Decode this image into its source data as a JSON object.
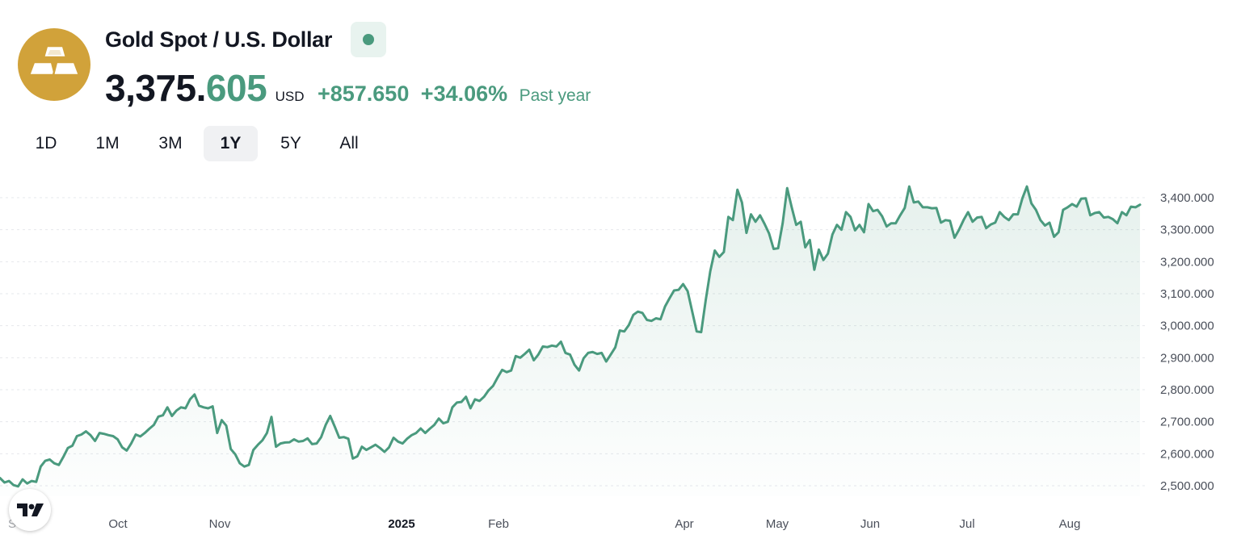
{
  "header": {
    "title": "Gold Spot / U.S. Dollar",
    "price_int": "3,375.",
    "price_dec": "605",
    "currency": "USD",
    "change": "+857.650",
    "change_pct": "+34.06%",
    "period_label": "Past year",
    "logo_icon": "gold-bars-icon",
    "status_icon": "market-open-dot-icon"
  },
  "tabs": [
    {
      "label": "1D",
      "active": false
    },
    {
      "label": "1M",
      "active": false
    },
    {
      "label": "3M",
      "active": false
    },
    {
      "label": "1Y",
      "active": true
    },
    {
      "label": "5Y",
      "active": false
    },
    {
      "label": "All",
      "active": false
    }
  ],
  "colors": {
    "accent": "#4a9a7e",
    "gold": "#d1a23a",
    "text": "#131722",
    "grid": "#e6e8ec"
  },
  "badge_icon": "tradingview-logo-icon",
  "chart_data": {
    "type": "area",
    "title": "",
    "xlabel": "",
    "ylabel": "",
    "ylim": [
      2470,
      3480
    ],
    "x_start_label": "S",
    "x_ticks": [
      {
        "label": "Oct",
        "bold": false
      },
      {
        "label": "Nov",
        "bold": false
      },
      {
        "label": "2025",
        "bold": true
      },
      {
        "label": "Feb",
        "bold": false
      },
      {
        "label": "Apr",
        "bold": false
      },
      {
        "label": "May",
        "bold": false
      },
      {
        "label": "Jun",
        "bold": false
      },
      {
        "label": "Jul",
        "bold": false
      },
      {
        "label": "Aug",
        "bold": false
      }
    ],
    "y_ticks": [
      {
        "value": 3400,
        "label": "3,400.000"
      },
      {
        "value": 3300,
        "label": "3,300.000"
      },
      {
        "value": 3200,
        "label": "3,200.000"
      },
      {
        "value": 3100,
        "label": "3,100.000"
      },
      {
        "value": 3000,
        "label": "3,000.000"
      },
      {
        "value": 2900,
        "label": "2,900.000"
      },
      {
        "value": 2800,
        "label": "2,800.000"
      },
      {
        "value": 2700,
        "label": "2,700.000"
      },
      {
        "value": 2600,
        "label": "2,600.000"
      },
      {
        "value": 2500,
        "label": "2,500.000"
      }
    ],
    "grid": true,
    "series": [
      {
        "values": [
          2524,
          2510,
          2515,
          2502,
          2498,
          2520,
          2507,
          2515,
          2512,
          2560,
          2578,
          2582,
          2570,
          2565,
          2590,
          2618,
          2625,
          2655,
          2660,
          2670,
          2658,
          2640,
          2665,
          2662,
          2658,
          2655,
          2645,
          2620,
          2610,
          2632,
          2660,
          2654,
          2665,
          2678,
          2690,
          2716,
          2720,
          2745,
          2718,
          2735,
          2745,
          2742,
          2770,
          2785,
          2750,
          2745,
          2742,
          2748,
          2665,
          2705,
          2688,
          2615,
          2598,
          2570,
          2560,
          2565,
          2612,
          2628,
          2642,
          2665,
          2715,
          2622,
          2632,
          2635,
          2636,
          2645,
          2638,
          2640,
          2648,
          2630,
          2632,
          2652,
          2690,
          2718,
          2685,
          2650,
          2652,
          2647,
          2585,
          2592,
          2622,
          2612,
          2620,
          2628,
          2618,
          2606,
          2620,
          2650,
          2638,
          2632,
          2647,
          2658,
          2665,
          2679,
          2665,
          2678,
          2690,
          2710,
          2695,
          2700,
          2745,
          2760,
          2762,
          2778,
          2742,
          2770,
          2765,
          2778,
          2798,
          2812,
          2838,
          2862,
          2855,
          2860,
          2905,
          2900,
          2912,
          2925,
          2892,
          2910,
          2935,
          2933,
          2938,
          2935,
          2950,
          2915,
          2910,
          2878,
          2860,
          2898,
          2915,
          2918,
          2912,
          2915,
          2888,
          2910,
          2932,
          2985,
          2982,
          3002,
          3034,
          3044,
          3040,
          3018,
          3015,
          3023,
          3020,
          3060,
          3086,
          3110,
          3112,
          3130,
          3108,
          3045,
          2982,
          2980,
          3080,
          3170,
          3235,
          3215,
          3230,
          3340,
          3330,
          3425,
          3385,
          3290,
          3348,
          3325,
          3345,
          3318,
          3288,
          3240,
          3242,
          3320,
          3430,
          3370,
          3315,
          3325,
          3245,
          3268,
          3175,
          3238,
          3205,
          3225,
          3285,
          3315,
          3300,
          3355,
          3340,
          3298,
          3315,
          3292,
          3380,
          3358,
          3362,
          3342,
          3310,
          3320,
          3320,
          3345,
          3368,
          3435,
          3385,
          3388,
          3370,
          3370,
          3367,
          3368,
          3322,
          3330,
          3328,
          3275,
          3300,
          3330,
          3355,
          3325,
          3338,
          3340,
          3305,
          3316,
          3322,
          3355,
          3340,
          3330,
          3348,
          3348,
          3398,
          3435,
          3382,
          3362,
          3330,
          3313,
          3322,
          3278,
          3292,
          3362,
          3370,
          3380,
          3372,
          3397,
          3398,
          3345,
          3352,
          3355,
          3338,
          3340,
          3333,
          3320,
          3355,
          3345,
          3372,
          3370,
          3378
        ]
      }
    ]
  }
}
